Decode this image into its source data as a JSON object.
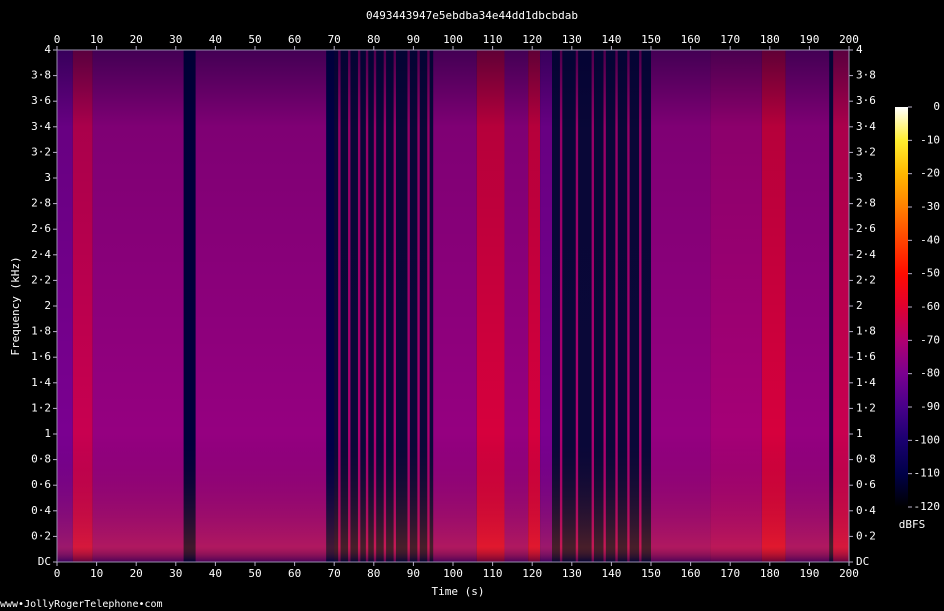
{
  "chart_data": {
    "type": "spectrogram",
    "title": "0493443947e5ebdba34e44dd1dbcbdab",
    "x_label": "Time (s)",
    "y_label": "Frequency (kHz)",
    "colorbar_label": "dBFS",
    "watermark": "www•JollyRogerTelephone•com",
    "xlim": [
      0,
      200
    ],
    "xticks": [
      0,
      10,
      20,
      30,
      40,
      50,
      60,
      70,
      80,
      90,
      100,
      110,
      120,
      130,
      140,
      150,
      160,
      170,
      180,
      190,
      200
    ],
    "ylim": [
      0,
      4
    ],
    "yticks": [
      {
        "value": 0,
        "label": "DC"
      },
      {
        "value": 0.2,
        "label": "0·2"
      },
      {
        "value": 0.4,
        "label": "0·4"
      },
      {
        "value": 0.6,
        "label": "0·6"
      },
      {
        "value": 0.8,
        "label": "0·8"
      },
      1,
      {
        "value": 1.2,
        "label": "1·2"
      },
      {
        "value": 1.4,
        "label": "1·4"
      },
      {
        "value": 1.6,
        "label": "1·6"
      },
      {
        "value": 1.8,
        "label": "1·8"
      },
      2,
      {
        "value": 2.2,
        "label": "2·2"
      },
      {
        "value": 2.4,
        "label": "2·4"
      },
      {
        "value": 2.6,
        "label": "2·6"
      },
      {
        "value": 2.8,
        "label": "2·8"
      },
      3,
      {
        "value": 3.2,
        "label": "3·2"
      },
      {
        "value": 3.4,
        "label": "3·4"
      },
      {
        "value": 3.6,
        "label": "3·6"
      },
      {
        "value": 3.8,
        "label": "3·8"
      },
      4
    ],
    "clim": [
      -120,
      0
    ],
    "cticks": [
      0,
      -10,
      -20,
      -30,
      -40,
      -50,
      -60,
      -70,
      -80,
      -90,
      -100,
      -110,
      -120
    ],
    "colormap": [
      "#000000",
      "#000048",
      "#1a0070",
      "#48008a",
      "#7a0090",
      "#b00070",
      "#e00030",
      "#ff0c00",
      "#ff4400",
      "#ff8000",
      "#ffb800",
      "#ffee30",
      "#ffffff"
    ],
    "segments": {
      "start": [
        0,
        4,
        9,
        32,
        35,
        68,
        71,
        73.5,
        76,
        78,
        80,
        82.5,
        85,
        88.5,
        91,
        93.5,
        95,
        106,
        113,
        119,
        122,
        127,
        131,
        135,
        138,
        141,
        144,
        147,
        150,
        165,
        178,
        184,
        196
      ],
      "end": [
        4,
        9,
        32,
        35,
        68,
        70,
        71.6,
        74.1,
        76.6,
        78.6,
        80.6,
        83.1,
        85.6,
        89.1,
        91.6,
        94.1,
        106,
        113,
        119,
        122,
        125,
        127.6,
        131.6,
        135.6,
        138.6,
        141.6,
        144.6,
        147.6,
        165,
        178,
        184,
        195,
        200
      ],
      "dbfs": [
        -80,
        -65,
        -75,
        -112,
        -75,
        -110,
        -70,
        -70,
        -70,
        -70,
        -70,
        -70,
        -70,
        -70,
        -70,
        -70,
        -75,
        -62,
        -75,
        -62,
        -80,
        -70,
        -70,
        -70,
        -70,
        -70,
        -70,
        -70,
        -75,
        -72,
        -62,
        -75,
        -65
      ]
    }
  }
}
